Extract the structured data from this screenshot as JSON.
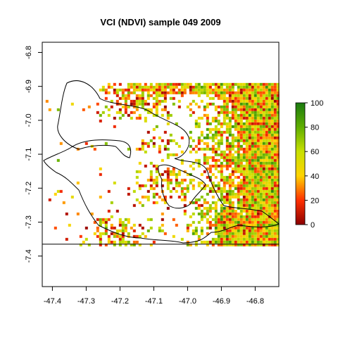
{
  "title": "VCI (NDVI) sample 049 2009",
  "map": {
    "type": "raster-map",
    "x_ticks": [
      "-47.4",
      "-47.3",
      "-47.2",
      "-47.1",
      "-47.0",
      "-46.9",
      "-46.8"
    ],
    "y_ticks": [
      "-6.8",
      "-6.9",
      "-7.0",
      "-7.1",
      "-7.2",
      "-7.3",
      "-7.4"
    ],
    "x_tick_values": [
      -47.4,
      -47.3,
      -47.2,
      -47.1,
      -47.0,
      -46.9,
      -46.8
    ],
    "y_tick_values": [
      -6.8,
      -6.9,
      -7.0,
      -7.1,
      -7.2,
      -7.3,
      -7.4
    ],
    "xlim": [
      -47.43,
      -46.73
    ],
    "ylim": [
      -7.49,
      -6.77
    ],
    "raster_extent": {
      "x": [
        -47.42,
        -46.73
      ],
      "y": [
        -7.37,
        -6.89
      ]
    },
    "boundary_color": "#000000",
    "background": "#ffffff"
  },
  "legend": {
    "ticks": [
      "100",
      "80",
      "60",
      "40",
      "20",
      "0"
    ],
    "tick_values": [
      100,
      80,
      60,
      40,
      20,
      0
    ],
    "range": [
      0,
      100
    ],
    "colors": [
      "#8b0000",
      "#ff3000",
      "#ffd400",
      "#c8e000",
      "#5fae00",
      "#1a7a10"
    ]
  }
}
